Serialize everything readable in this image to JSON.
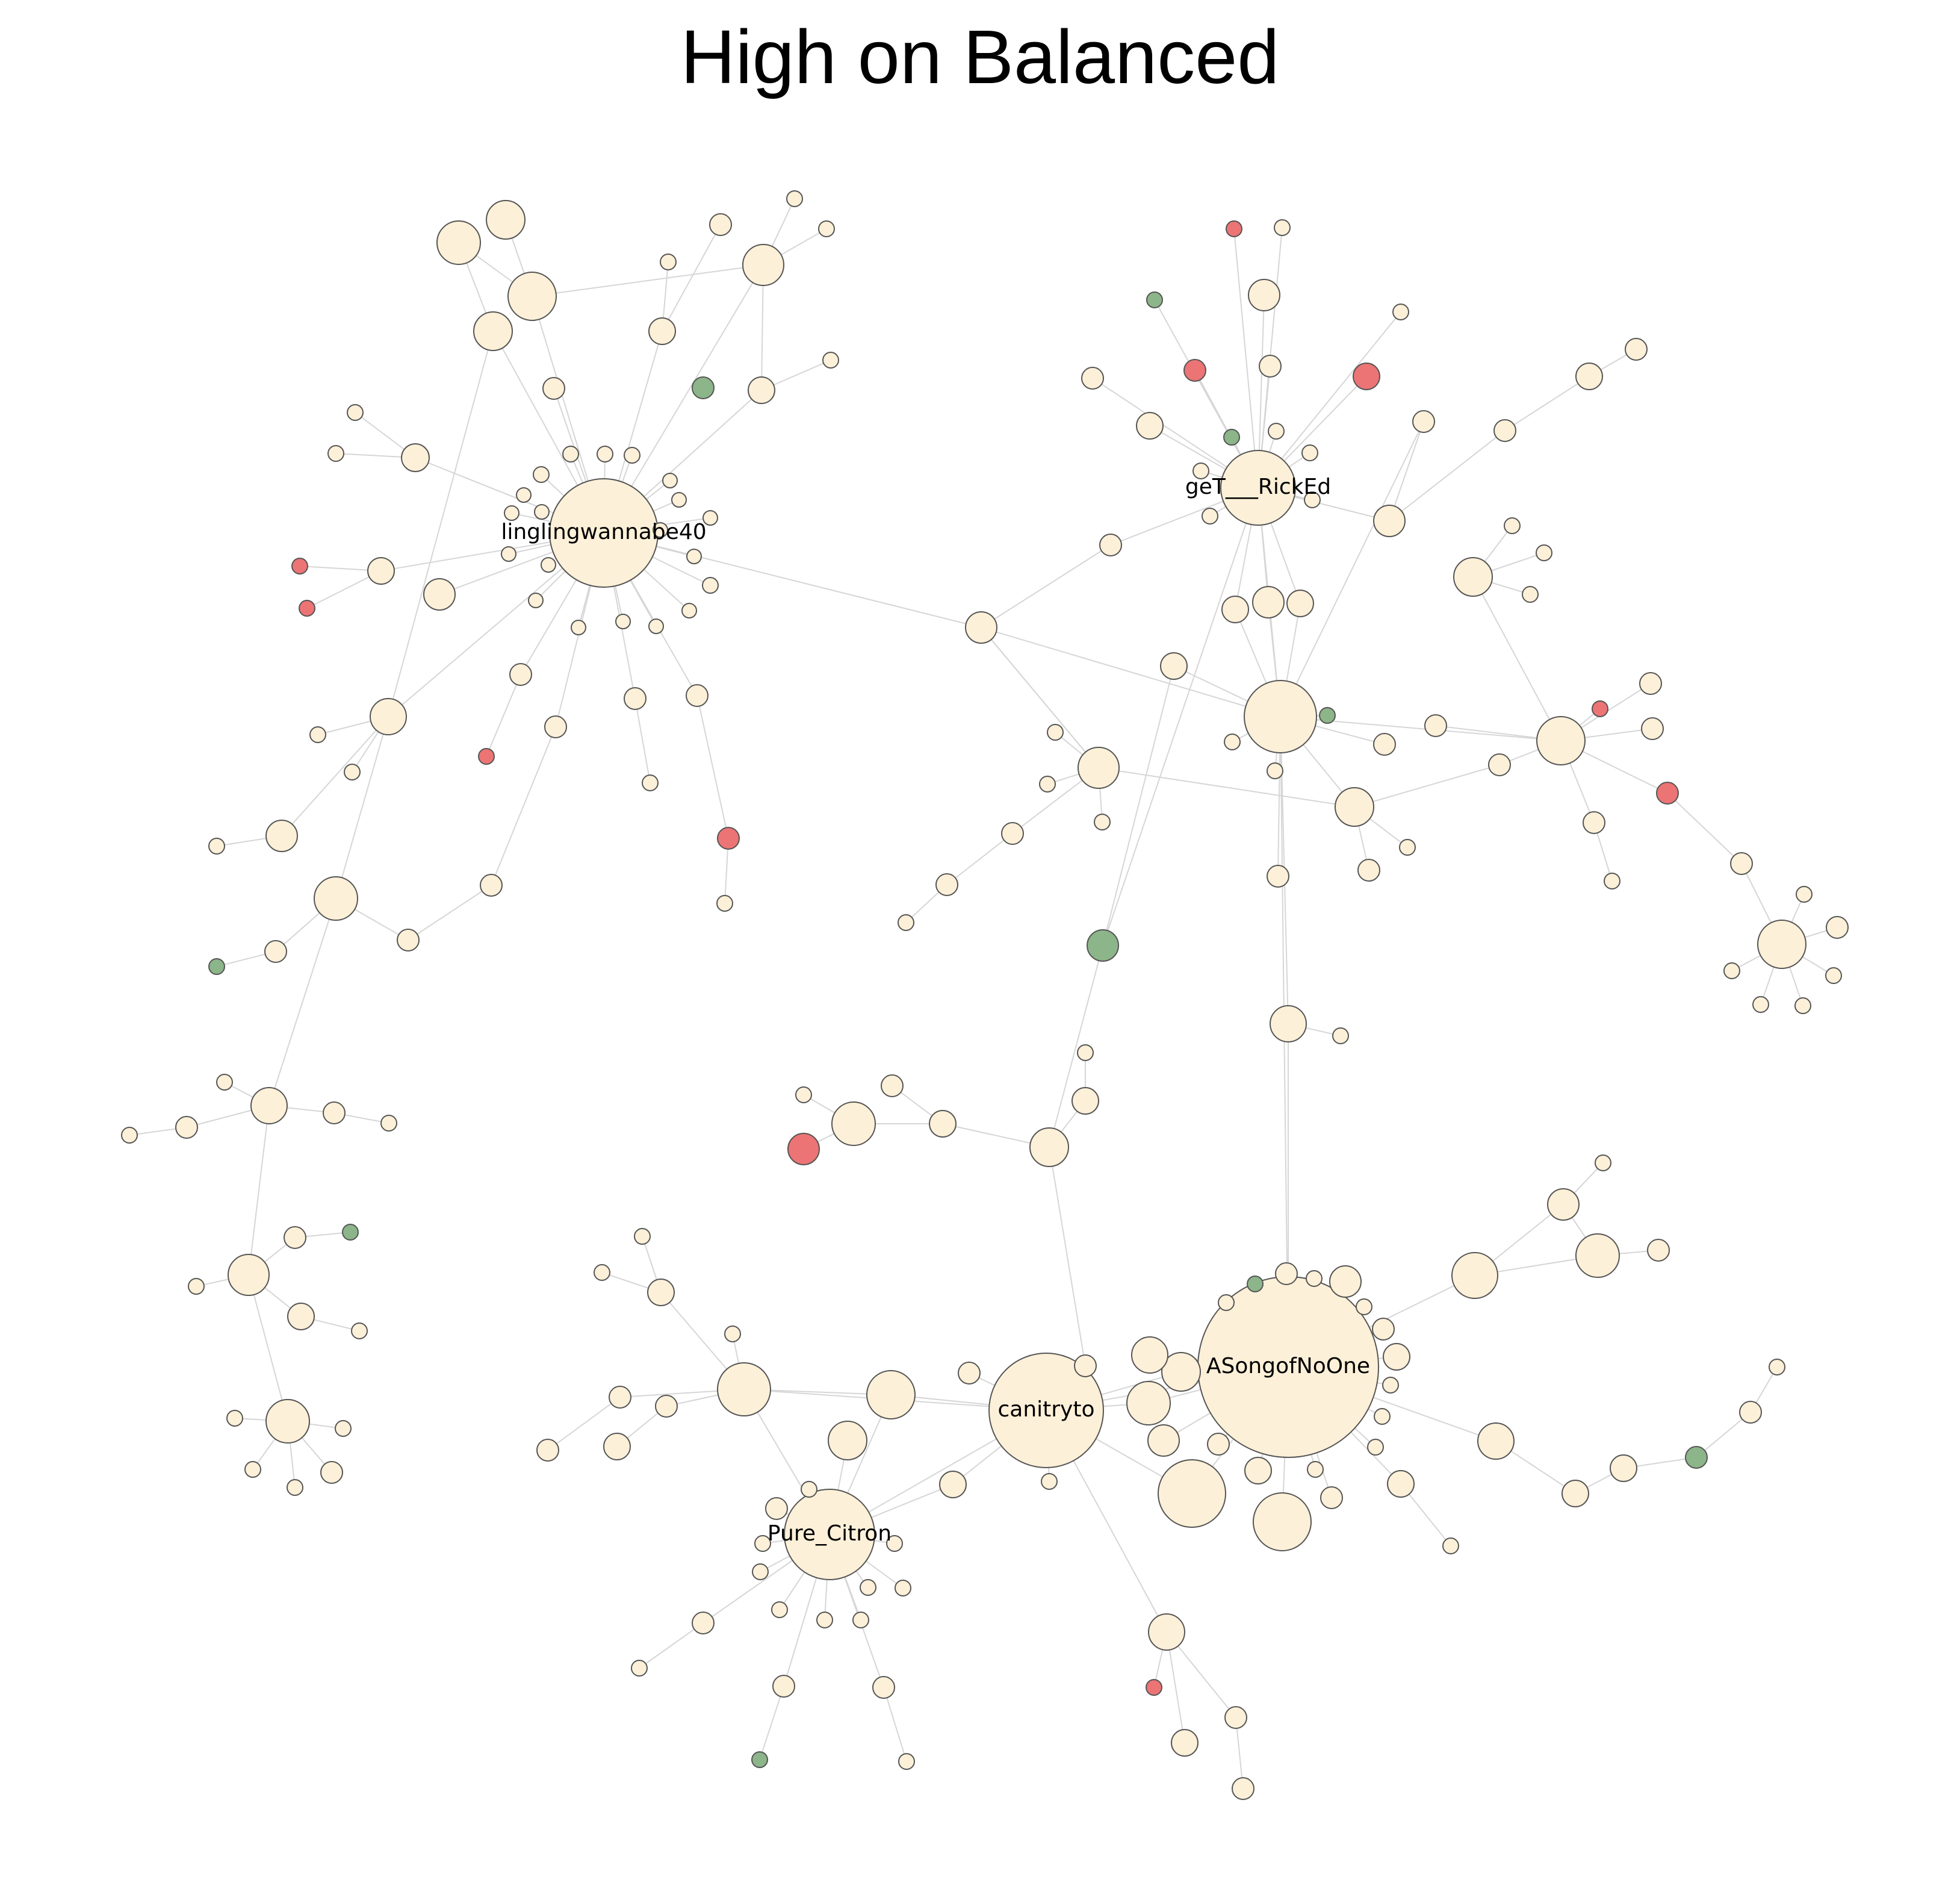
{
  "title": "High on Balanced",
  "colors": {
    "neutral": "#fdf0d8",
    "negative": "#ec7475",
    "positive": "#8cb589",
    "edge": "#d6d6d6",
    "outline": "#555555"
  },
  "hub_labels": [
    "linglingwannabe40",
    "geT___RickEd",
    "ASongofNoOne",
    "canitryto",
    "Pure_Citron"
  ]
}
